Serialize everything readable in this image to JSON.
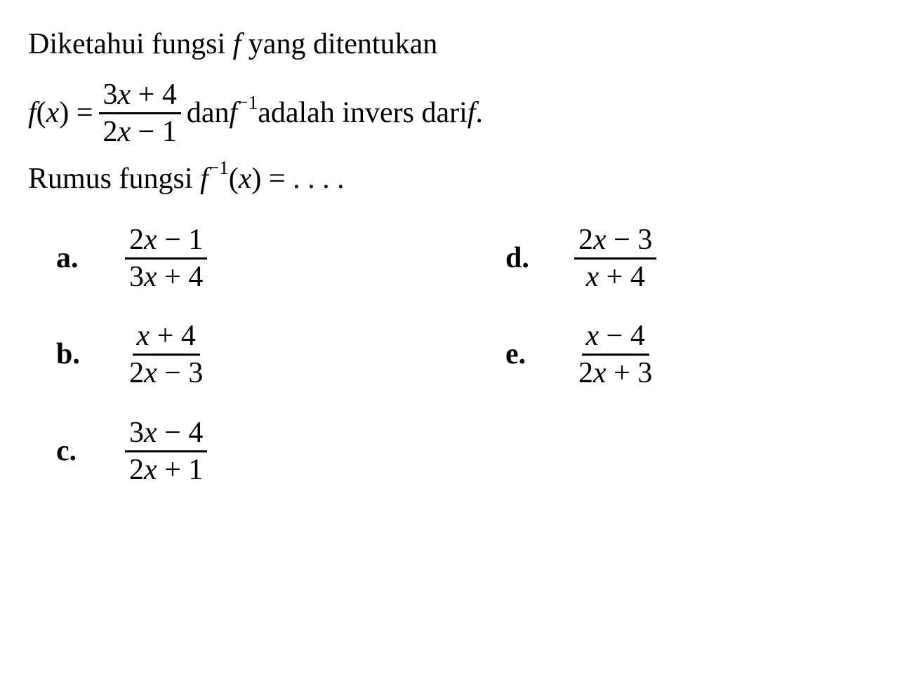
{
  "text_color": "#000000",
  "background_color": "#ffffff",
  "font_family": "Times New Roman",
  "base_fontsize": 42,
  "intro": {
    "prefix": "Diketahui fungsi ",
    "var": "f",
    "suffix": " yang ditentukan"
  },
  "definition": {
    "lhs_f": "f",
    "lhs_paren_open": "(",
    "lhs_x": "x",
    "lhs_paren_close": ") = ",
    "frac_num_coef": "3",
    "frac_num_var": "x",
    "frac_num_op": " + ",
    "frac_num_const": "4",
    "frac_den_coef": "2",
    "frac_den_var": "x",
    "frac_den_op": " − ",
    "frac_den_const": "1",
    "mid_text": " dan ",
    "finv_f": "f",
    "finv_exp": "−1",
    "tail": " adalah invers dari ",
    "tail_f": "f",
    "tail_period": "."
  },
  "question": {
    "prefix": "Rumus fungsi ",
    "f": "f",
    "exp": "−1",
    "paren_open": "(",
    "x": "x",
    "paren_close": ") = . . . .",
    "dots": ""
  },
  "options": {
    "a": {
      "label": "a.",
      "num_coef": "2",
      "num_var": "x",
      "num_op": " − ",
      "num_const": "1",
      "den_coef": "3",
      "den_var": "x",
      "den_op": " + ",
      "den_const": "4"
    },
    "b": {
      "label": "b.",
      "num_coef": "",
      "num_var": "x",
      "num_op": " + ",
      "num_const": "4",
      "den_coef": "2",
      "den_var": "x",
      "den_op": " − ",
      "den_const": "3"
    },
    "c": {
      "label": "c.",
      "num_coef": "3",
      "num_var": "x",
      "num_op": " − ",
      "num_const": "4",
      "den_coef": "2",
      "den_var": "x",
      "den_op": " + ",
      "den_const": "1"
    },
    "d": {
      "label": "d.",
      "num_coef": "2",
      "num_var": "x",
      "num_op": " − ",
      "num_const": "3",
      "den_coef": "",
      "den_var": "x",
      "den_op": " + ",
      "den_const": "4"
    },
    "e": {
      "label": "e.",
      "num_coef": "",
      "num_var": "x",
      "num_op": " − ",
      "num_const": "4",
      "den_coef": "2",
      "den_var": "x",
      "den_op": " + ",
      "den_const": "3"
    }
  }
}
